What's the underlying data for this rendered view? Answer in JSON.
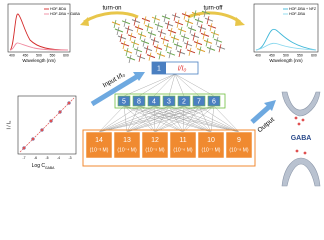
{
  "left_spectrum": {
    "legend": [
      "HOF-BDA",
      "HOF-DBA + GABA"
    ],
    "x_label": "Wavelength (nm)",
    "x_ticks": [
      "400",
      "450",
      "500",
      "550",
      "600"
    ]
  },
  "turn_on": "turn-on",
  "turn_off": "turn-off",
  "right_spectrum": {
    "legend": [
      "HOF-DBA + NFZ",
      "HOF-DBA"
    ],
    "x_label": "Wavelength (nm)",
    "x_ticks": [
      "400",
      "450",
      "500",
      "550",
      "600"
    ]
  },
  "calibration": {
    "y_label": "I / I₀",
    "x_label": "Log C",
    "x_label_sub": "GABA",
    "x_ticks": [
      "-7",
      "-6",
      "-5",
      "-4",
      "-3"
    ]
  },
  "network": {
    "input_label": "Input I/I₀",
    "output_label": "Output",
    "input_node": {
      "id": "1",
      "label": "I/I₀"
    },
    "hidden_nodes": [
      "5",
      "8",
      "4",
      "3",
      "2",
      "7",
      "6"
    ],
    "output_nodes": [
      {
        "id": "14",
        "label": "(10⁻³ M)"
      },
      {
        "id": "13",
        "label": "(10⁻⁴ M)"
      },
      {
        "id": "12",
        "label": "(10⁻⁵ M)"
      },
      {
        "id": "11",
        "label": "(10⁻⁶ M)"
      },
      {
        "id": "10",
        "label": "(10⁻⁷ M)"
      },
      {
        "id": "9",
        "label": "(10⁻⁸ M)"
      }
    ]
  },
  "synapse_label": "GABA"
}
